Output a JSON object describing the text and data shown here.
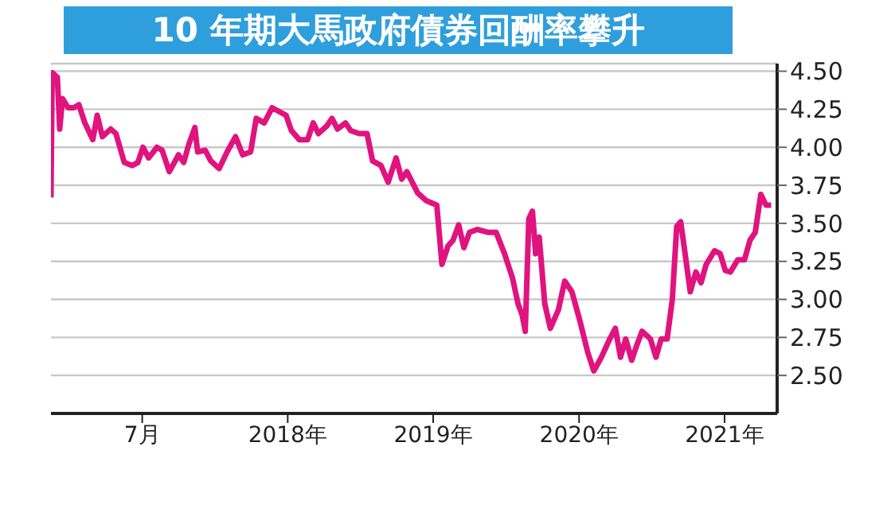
{
  "chart_data": {
    "type": "line",
    "title": "10 年期大馬政府債券回酬率攀升",
    "grid": "y",
    "marker": "none",
    "xlim": [
      "2016-11-14",
      "2021-11-10"
    ],
    "xticks": [
      {
        "value": "2017-07-01",
        "label": "7月"
      },
      {
        "value": "2018-07-01",
        "label": "2018年"
      },
      {
        "value": "2019-07-01",
        "label": "2019年"
      },
      {
        "value": "2020-07-01",
        "label": "2020年"
      },
      {
        "value": "2021-07-01",
        "label": "2021年"
      }
    ],
    "ylim": [
      2.25,
      4.55
    ],
    "yticks": [
      {
        "value": 2.5,
        "label": "2.50"
      },
      {
        "value": 2.75,
        "label": "2.75"
      },
      {
        "value": 3,
        "label": "3.00"
      },
      {
        "value": 3.25,
        "label": "3.25"
      },
      {
        "value": 3.5,
        "label": "3.50"
      },
      {
        "value": 3.75,
        "label": "3.75"
      },
      {
        "value": 4,
        "label": "4.00"
      },
      {
        "value": 4.25,
        "label": "4.25"
      },
      {
        "value": 4.5,
        "label": "4.50"
      }
    ],
    "series": [
      {
        "color": "#e0137f",
        "x": [
          "2016-11-14",
          "2016-11-17",
          "2016-11-30",
          "2016-12-06",
          "2016-12-13",
          "2016-12-27",
          "2017-01-10",
          "2017-01-23",
          "2017-02-07",
          "2017-02-27",
          "2017-03-10",
          "2017-03-23",
          "2017-04-13",
          "2017-04-26",
          "2017-05-17",
          "2017-06-06",
          "2017-06-20",
          "2017-07-03",
          "2017-07-17",
          "2017-08-07",
          "2017-08-20",
          "2017-09-07",
          "2017-09-30",
          "2017-10-13",
          "2017-10-26",
          "2017-11-10",
          "2017-11-17",
          "2017-12-06",
          "2017-12-20",
          "2018-01-10",
          "2018-01-30",
          "2018-02-20",
          "2018-03-10",
          "2018-03-30",
          "2018-04-13",
          "2018-05-03",
          "2018-05-23",
          "2018-06-13",
          "2018-06-27",
          "2018-07-10",
          "2018-07-30",
          "2018-08-20",
          "2018-09-03",
          "2018-09-16",
          "2018-10-07",
          "2018-10-20",
          "2018-11-03",
          "2018-11-23",
          "2018-12-06",
          "2018-12-27",
          "2019-01-16",
          "2019-01-30",
          "2019-02-20",
          "2019-03-10",
          "2019-03-30",
          "2019-04-13",
          "2019-04-26",
          "2019-05-23",
          "2019-06-13",
          "2019-07-10",
          "2019-07-23",
          "2019-08-07",
          "2019-08-20",
          "2019-09-03",
          "2019-09-16",
          "2019-09-30",
          "2019-10-20",
          "2019-11-17",
          "2019-12-06",
          "2019-12-27",
          "2020-01-16",
          "2020-01-30",
          "2020-02-09",
          "2020-02-17",
          "2020-02-26",
          "2020-03-06",
          "2020-03-14",
          "2020-03-23",
          "2020-04-06",
          "2020-04-20",
          "2020-05-10",
          "2020-05-26",
          "2020-06-13",
          "2020-07-03",
          "2020-07-23",
          "2020-08-07",
          "2020-08-26",
          "2020-09-16",
          "2020-09-30",
          "2020-10-13",
          "2020-10-26",
          "2020-11-10",
          "2020-11-23",
          "2020-12-06",
          "2020-12-27",
          "2021-01-10",
          "2021-01-23",
          "2021-02-07",
          "2021-02-20",
          "2021-03-03",
          "2021-03-13",
          "2021-03-23",
          "2021-04-06",
          "2021-04-20",
          "2021-05-03",
          "2021-05-16",
          "2021-06-06",
          "2021-06-20",
          "2021-07-03",
          "2021-07-16",
          "2021-08-03",
          "2021-08-20",
          "2021-09-03",
          "2021-09-16",
          "2021-09-30",
          "2021-10-13",
          "2021-10-26"
        ],
        "values": [
          3.67,
          4.49,
          4.46,
          4.12,
          4.32,
          4.26,
          4.26,
          4.28,
          4.16,
          4.05,
          4.21,
          4.07,
          4.12,
          4.09,
          3.9,
          3.88,
          3.9,
          4.0,
          3.93,
          4.0,
          3.98,
          3.84,
          3.95,
          3.9,
          4.02,
          4.13,
          3.97,
          3.98,
          3.91,
          3.86,
          3.97,
          4.07,
          3.95,
          3.97,
          4.19,
          4.16,
          4.26,
          4.23,
          4.21,
          4.11,
          4.05,
          4.05,
          4.16,
          4.09,
          4.14,
          4.19,
          4.12,
          4.16,
          4.11,
          4.09,
          4.09,
          3.91,
          3.88,
          3.77,
          3.93,
          3.79,
          3.84,
          3.7,
          3.65,
          3.62,
          3.23,
          3.35,
          3.39,
          3.49,
          3.34,
          3.44,
          3.46,
          3.44,
          3.44,
          3.3,
          3.14,
          2.97,
          2.9,
          2.79,
          3.53,
          3.58,
          3.3,
          3.41,
          2.97,
          2.81,
          2.93,
          3.12,
          3.05,
          2.86,
          2.65,
          2.53,
          2.62,
          2.74,
          2.81,
          2.62,
          2.74,
          2.6,
          2.7,
          2.79,
          2.74,
          2.62,
          2.74,
          2.74,
          3.0,
          3.48,
          3.51,
          3.32,
          3.05,
          3.18,
          3.11,
          3.23,
          3.32,
          3.3,
          3.19,
          3.18,
          3.26,
          3.26,
          3.39,
          3.44,
          3.69,
          3.62,
          3.62
        ]
      }
    ]
  }
}
